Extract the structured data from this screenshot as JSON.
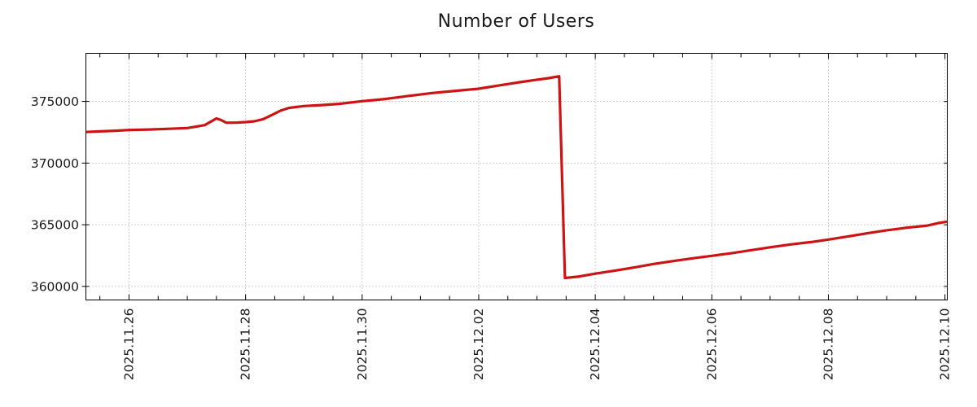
{
  "title": "Number of Users",
  "colors": {
    "line": "#cc1414",
    "grid": "#9a9a9a",
    "text": "#1b1b1b",
    "border": "#000000",
    "background": "#ffffff"
  },
  "chart_data": {
    "type": "line",
    "title": "Number of Users",
    "legend_position": "none",
    "grid": {
      "show": true,
      "style": "dotted",
      "color": "#9a9a9a"
    },
    "x_axis": {
      "unit": "date",
      "day0_date": "2025.11.25",
      "range_days": [
        0.26,
        15.04
      ],
      "minor_tick_step_days": 0.5,
      "tick_label_rotation_deg": -90,
      "major_ticks": [
        {
          "day": 1,
          "label": "2025.11.26"
        },
        {
          "day": 3,
          "label": "2025.11.28"
        },
        {
          "day": 5,
          "label": "2025.11.30"
        },
        {
          "day": 7,
          "label": "2025.12.02"
        },
        {
          "day": 9,
          "label": "2025.12.04"
        },
        {
          "day": 11,
          "label": "2025.12.06"
        },
        {
          "day": 13,
          "label": "2025.12.08"
        },
        {
          "day": 15,
          "label": "2025.12.10"
        }
      ]
    },
    "y_axis": {
      "range": [
        358900,
        378900
      ],
      "ticks": [
        {
          "value": 360000,
          "label": "360000"
        },
        {
          "value": 365000,
          "label": "365000"
        },
        {
          "value": 370000,
          "label": "370000"
        },
        {
          "value": 375000,
          "label": "375000"
        }
      ]
    },
    "series": [
      {
        "name": "users",
        "color": "#cc1414",
        "line_width": 3.2,
        "points": [
          [
            0.26,
            372520
          ],
          [
            0.5,
            372570
          ],
          [
            0.8,
            372630
          ],
          [
            1.0,
            372680
          ],
          [
            1.35,
            372720
          ],
          [
            1.7,
            372780
          ],
          [
            2.0,
            372840
          ],
          [
            2.15,
            372950
          ],
          [
            2.3,
            373080
          ],
          [
            2.42,
            373400
          ],
          [
            2.5,
            373620
          ],
          [
            2.58,
            373490
          ],
          [
            2.67,
            373270
          ],
          [
            2.85,
            373280
          ],
          [
            3.0,
            373320
          ],
          [
            3.15,
            373390
          ],
          [
            3.3,
            373560
          ],
          [
            3.45,
            373900
          ],
          [
            3.6,
            374250
          ],
          [
            3.75,
            374480
          ],
          [
            4.0,
            374620
          ],
          [
            4.3,
            374700
          ],
          [
            4.6,
            374800
          ],
          [
            5.0,
            375020
          ],
          [
            5.4,
            375200
          ],
          [
            5.8,
            375450
          ],
          [
            6.2,
            375680
          ],
          [
            6.6,
            375860
          ],
          [
            7.0,
            376030
          ],
          [
            7.35,
            376300
          ],
          [
            7.7,
            376560
          ],
          [
            8.0,
            376760
          ],
          [
            8.2,
            376890
          ],
          [
            8.38,
            377040
          ],
          [
            8.48,
            360680
          ],
          [
            8.7,
            360790
          ],
          [
            9.0,
            361030
          ],
          [
            9.35,
            361290
          ],
          [
            9.7,
            361560
          ],
          [
            10.0,
            361820
          ],
          [
            10.35,
            362060
          ],
          [
            10.7,
            362290
          ],
          [
            11.0,
            362480
          ],
          [
            11.35,
            362700
          ],
          [
            11.7,
            362950
          ],
          [
            12.0,
            363170
          ],
          [
            12.35,
            363400
          ],
          [
            12.7,
            363590
          ],
          [
            13.0,
            363800
          ],
          [
            13.35,
            364060
          ],
          [
            13.7,
            364330
          ],
          [
            14.0,
            364550
          ],
          [
            14.35,
            364760
          ],
          [
            14.7,
            364930
          ],
          [
            14.9,
            365150
          ],
          [
            15.04,
            365250
          ]
        ]
      }
    ]
  }
}
